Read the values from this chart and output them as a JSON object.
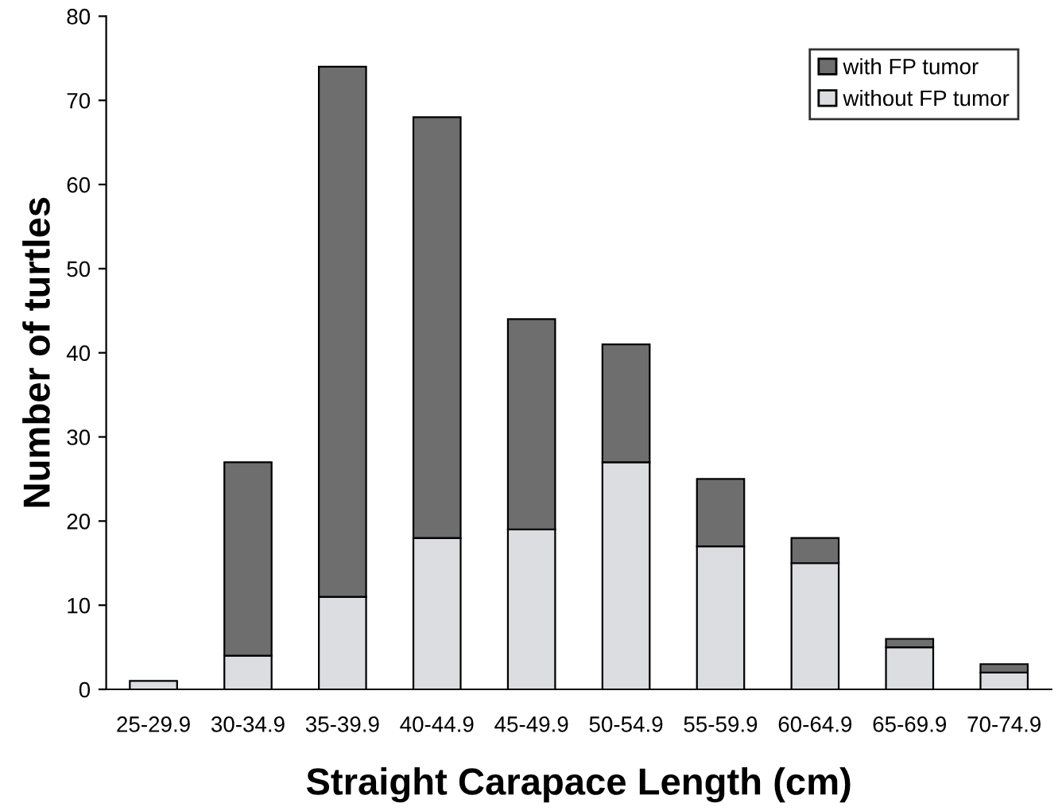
{
  "chart_data": {
    "type": "bar",
    "stacked": true,
    "xlabel": "Straight Carapace Length (cm)",
    "ylabel": "Number of turtles",
    "categories": [
      "25-29.9",
      "30-34.9",
      "35-39.9",
      "40-44.9",
      "45-49.9",
      "50-54.9",
      "55-59.9",
      "60-64.9",
      "65-69.9",
      "70-74.9"
    ],
    "series": [
      {
        "name": "without FP tumor",
        "color": "#dcdde0",
        "values": [
          1,
          4,
          11,
          18,
          19,
          27,
          17,
          15,
          5,
          2
        ]
      },
      {
        "name": "with FP tumor",
        "color": "#6e6e6e",
        "values": [
          0,
          23,
          63,
          50,
          25,
          14,
          8,
          3,
          1,
          1
        ]
      }
    ],
    "ylim": [
      0,
      80
    ],
    "yticks": [
      0,
      10,
      20,
      30,
      40,
      50,
      60,
      70,
      80
    ],
    "grid": false,
    "legend": "top right"
  }
}
